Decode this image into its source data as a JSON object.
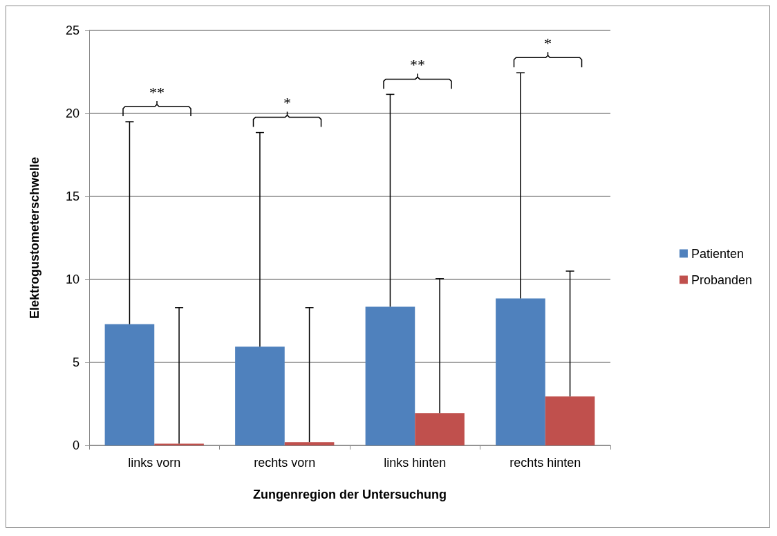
{
  "chart_data": {
    "type": "bar",
    "xlabel": "Zungenregion der Untersuchung",
    "ylabel": "Elektrogustometerschwelle",
    "categories": [
      "links vorn",
      "rechts vorn",
      "links hinten",
      "rechts hinten"
    ],
    "series": [
      {
        "name": "Patienten",
        "color": "#4f81bd",
        "values": [
          7.3,
          5.95,
          8.35,
          8.85
        ],
        "errors": [
          [
            7.3,
            19.5
          ],
          [
            5.95,
            18.85
          ],
          [
            8.35,
            21.15
          ],
          [
            8.85,
            22.45
          ]
        ]
      },
      {
        "name": "Probanden",
        "color": "#c0504d",
        "values": [
          0.1,
          0.2,
          1.95,
          2.95
        ],
        "errors": [
          [
            0.1,
            8.3
          ],
          [
            0.2,
            8.3
          ],
          [
            1.95,
            10.05
          ],
          [
            2.95,
            10.5
          ]
        ]
      }
    ],
    "ylim": [
      0,
      25
    ],
    "yticks": [
      0,
      5,
      10,
      15,
      20,
      25
    ],
    "grid": "y",
    "legend": "right",
    "annotations": [
      "**",
      "*",
      "**",
      "*"
    ]
  }
}
